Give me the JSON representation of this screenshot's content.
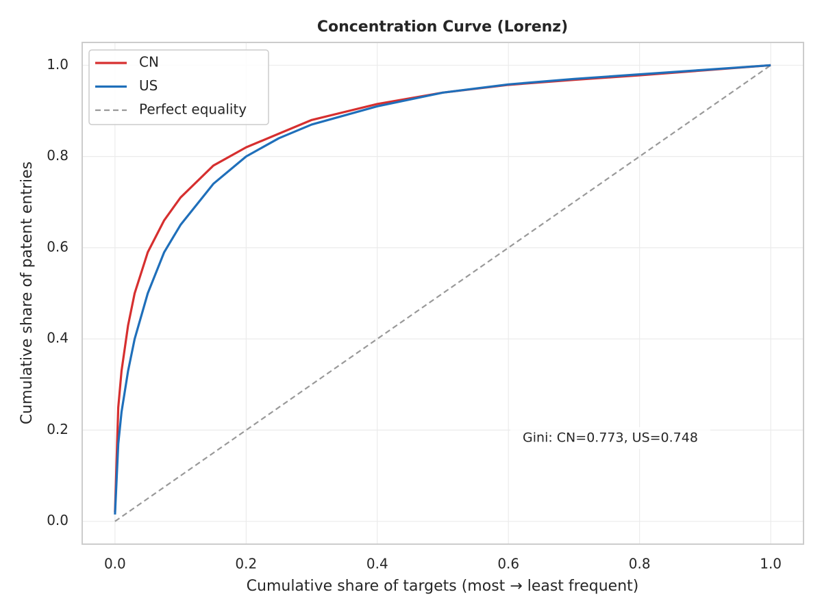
{
  "chart_data": {
    "type": "line",
    "title": "Concentration Curve (Lorenz)",
    "xlabel": "Cumulative share of targets (most → least frequent)",
    "ylabel": "Cumulative share of patent entries",
    "annotation": "Gini: CN=0.773, US=0.748",
    "x": [
      0,
      0.005,
      0.01,
      0.02,
      0.03,
      0.05,
      0.075,
      0.1,
      0.15,
      0.2,
      0.25,
      0.3,
      0.4,
      0.5,
      0.6,
      0.7,
      0.8,
      0.9,
      1.0
    ],
    "series": [
      {
        "name": "CN",
        "color": "#d62f2f",
        "values": [
          0.02,
          0.25,
          0.33,
          0.43,
          0.5,
          0.59,
          0.66,
          0.71,
          0.78,
          0.82,
          0.85,
          0.88,
          0.915,
          0.94,
          0.957,
          0.968,
          0.978,
          0.989,
          1.0
        ]
      },
      {
        "name": "US",
        "color": "#1f6fba",
        "values": [
          0.015,
          0.17,
          0.24,
          0.33,
          0.4,
          0.5,
          0.59,
          0.65,
          0.74,
          0.8,
          0.84,
          0.87,
          0.91,
          0.94,
          0.958,
          0.97,
          0.98,
          0.99,
          1.0
        ]
      },
      {
        "name": "Perfect equality",
        "color": "#999999",
        "dashed": true,
        "values": [
          0,
          0.005,
          0.01,
          0.02,
          0.03,
          0.05,
          0.075,
          0.1,
          0.15,
          0.2,
          0.25,
          0.3,
          0.4,
          0.5,
          0.6,
          0.7,
          0.8,
          0.9,
          1.0
        ]
      }
    ],
    "xlim": [
      -0.05,
      1.05
    ],
    "ylim": [
      -0.05,
      1.05
    ],
    "xticks": [
      {
        "value": 0,
        "label": "0.0"
      },
      {
        "value": 0.2,
        "label": "0.2"
      },
      {
        "value": 0.4,
        "label": "0.4"
      },
      {
        "value": 0.6,
        "label": "0.6"
      },
      {
        "value": 0.8,
        "label": "0.8"
      },
      {
        "value": 1,
        "label": "1.0"
      }
    ],
    "yticks": [
      {
        "value": 0,
        "label": "0.0"
      },
      {
        "value": 0.2,
        "label": "0.2"
      },
      {
        "value": 0.4,
        "label": "0.4"
      },
      {
        "value": 0.6,
        "label": "0.6"
      },
      {
        "value": 0.8,
        "label": "0.8"
      },
      {
        "value": 1,
        "label": "1.0"
      }
    ],
    "grid": true,
    "legend": "upper left"
  }
}
